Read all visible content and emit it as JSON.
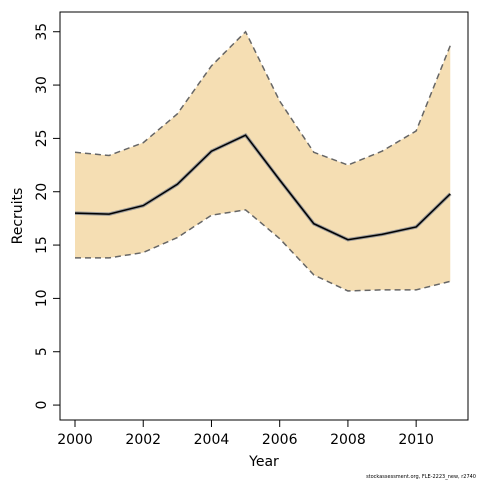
{
  "chart_data": {
    "type": "line_band",
    "x_label": "Year",
    "y_label": "Recruits",
    "footer": "stockassessment.org, FLE-2223_new, r2740",
    "x": [
      2000,
      2001,
      2002,
      2003,
      2004,
      2005,
      2006,
      2007,
      2008,
      2009,
      2010,
      2011
    ],
    "values": [
      18.0,
      17.9,
      18.7,
      20.7,
      23.8,
      25.3,
      21.1,
      17.0,
      15.5,
      16.0,
      16.7,
      19.8
    ],
    "upper": [
      23.7,
      23.4,
      24.6,
      27.3,
      31.8,
      35.0,
      28.5,
      23.7,
      22.5,
      23.8,
      25.7,
      33.7
    ],
    "lower": [
      13.8,
      13.8,
      14.3,
      15.7,
      17.8,
      18.3,
      15.6,
      12.2,
      10.7,
      10.8,
      10.8,
      11.6
    ],
    "color": "#000000",
    "band_color": "#f5deb3",
    "band_edge_color": "#666666",
    "xlim": [
      1999.56,
      2011.52
    ],
    "xticks": [
      2000,
      2002,
      2004,
      2006,
      2008,
      2010
    ],
    "ylim": [
      -1.4,
      36.85
    ],
    "yticks": [
      0,
      5,
      10,
      15,
      20,
      25,
      30,
      35
    ]
  }
}
